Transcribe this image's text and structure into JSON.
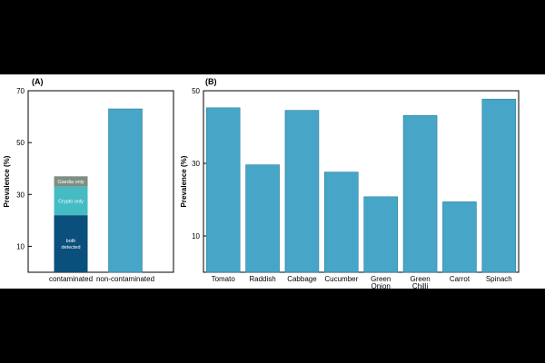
{
  "colors": {
    "bar": "#47a5c7",
    "bar_stroke": "#2e7f9d",
    "both": "#0b4f7c",
    "crypto": "#45bcc4",
    "giardia": "#7c8f82"
  },
  "chart_data": [
    {
      "type": "bar",
      "panel_label": "(A)",
      "ylabel": "Prevalence (%)",
      "ylim": [
        0,
        70
      ],
      "yticks": [
        10,
        30,
        50,
        70
      ],
      "categories": [
        "contaminated",
        "non-contaminated"
      ],
      "series": [
        {
          "name": "both detected",
          "values": [
            22,
            0
          ]
        },
        {
          "name": "Crypto only",
          "values": [
            11,
            0
          ]
        },
        {
          "name": "Giardia only",
          "values": [
            4,
            0
          ]
        },
        {
          "values": [
            0,
            63
          ]
        }
      ],
      "stacked": true,
      "grid": false
    },
    {
      "type": "bar",
      "panel_label": "(B)",
      "ylabel": "Prevalence (%)",
      "ylim": [
        0,
        50
      ],
      "yticks": [
        10,
        30,
        50
      ],
      "categories": [
        "Tomato",
        "Raddish",
        "Cabbage",
        "Cucumber",
        "Green Onion",
        "Green Chilli",
        "Carrot",
        "Spinach"
      ],
      "values": [
        45.3,
        29.6,
        44.6,
        27.6,
        20.8,
        43.2,
        19.4,
        47.7
      ],
      "grid": false
    }
  ]
}
